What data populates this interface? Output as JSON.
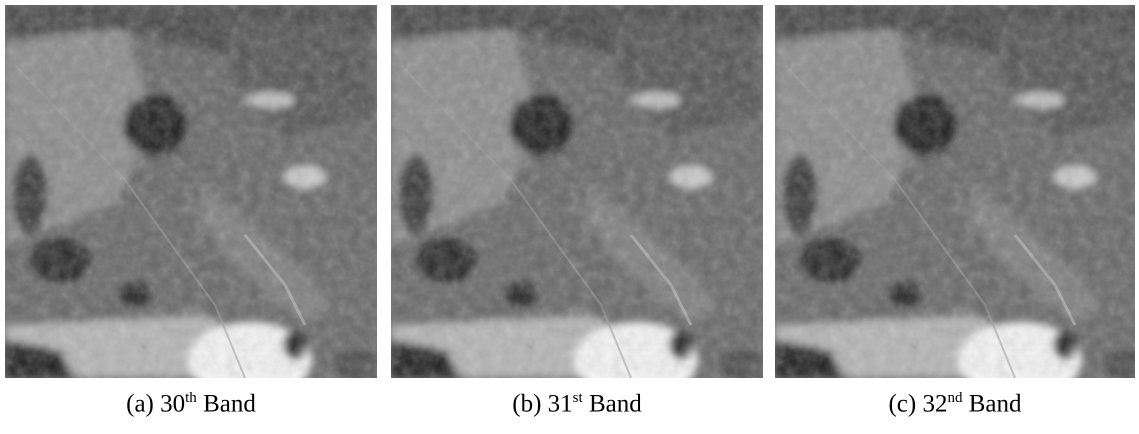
{
  "panels": [
    {
      "prefix": "(a) 30",
      "sup": "th",
      "suffix": "Band"
    },
    {
      "prefix": "(b) 31",
      "sup": "st",
      "suffix": "Band"
    },
    {
      "prefix": "(c) 32",
      "sup": "nd",
      "suffix": "Band"
    }
  ]
}
